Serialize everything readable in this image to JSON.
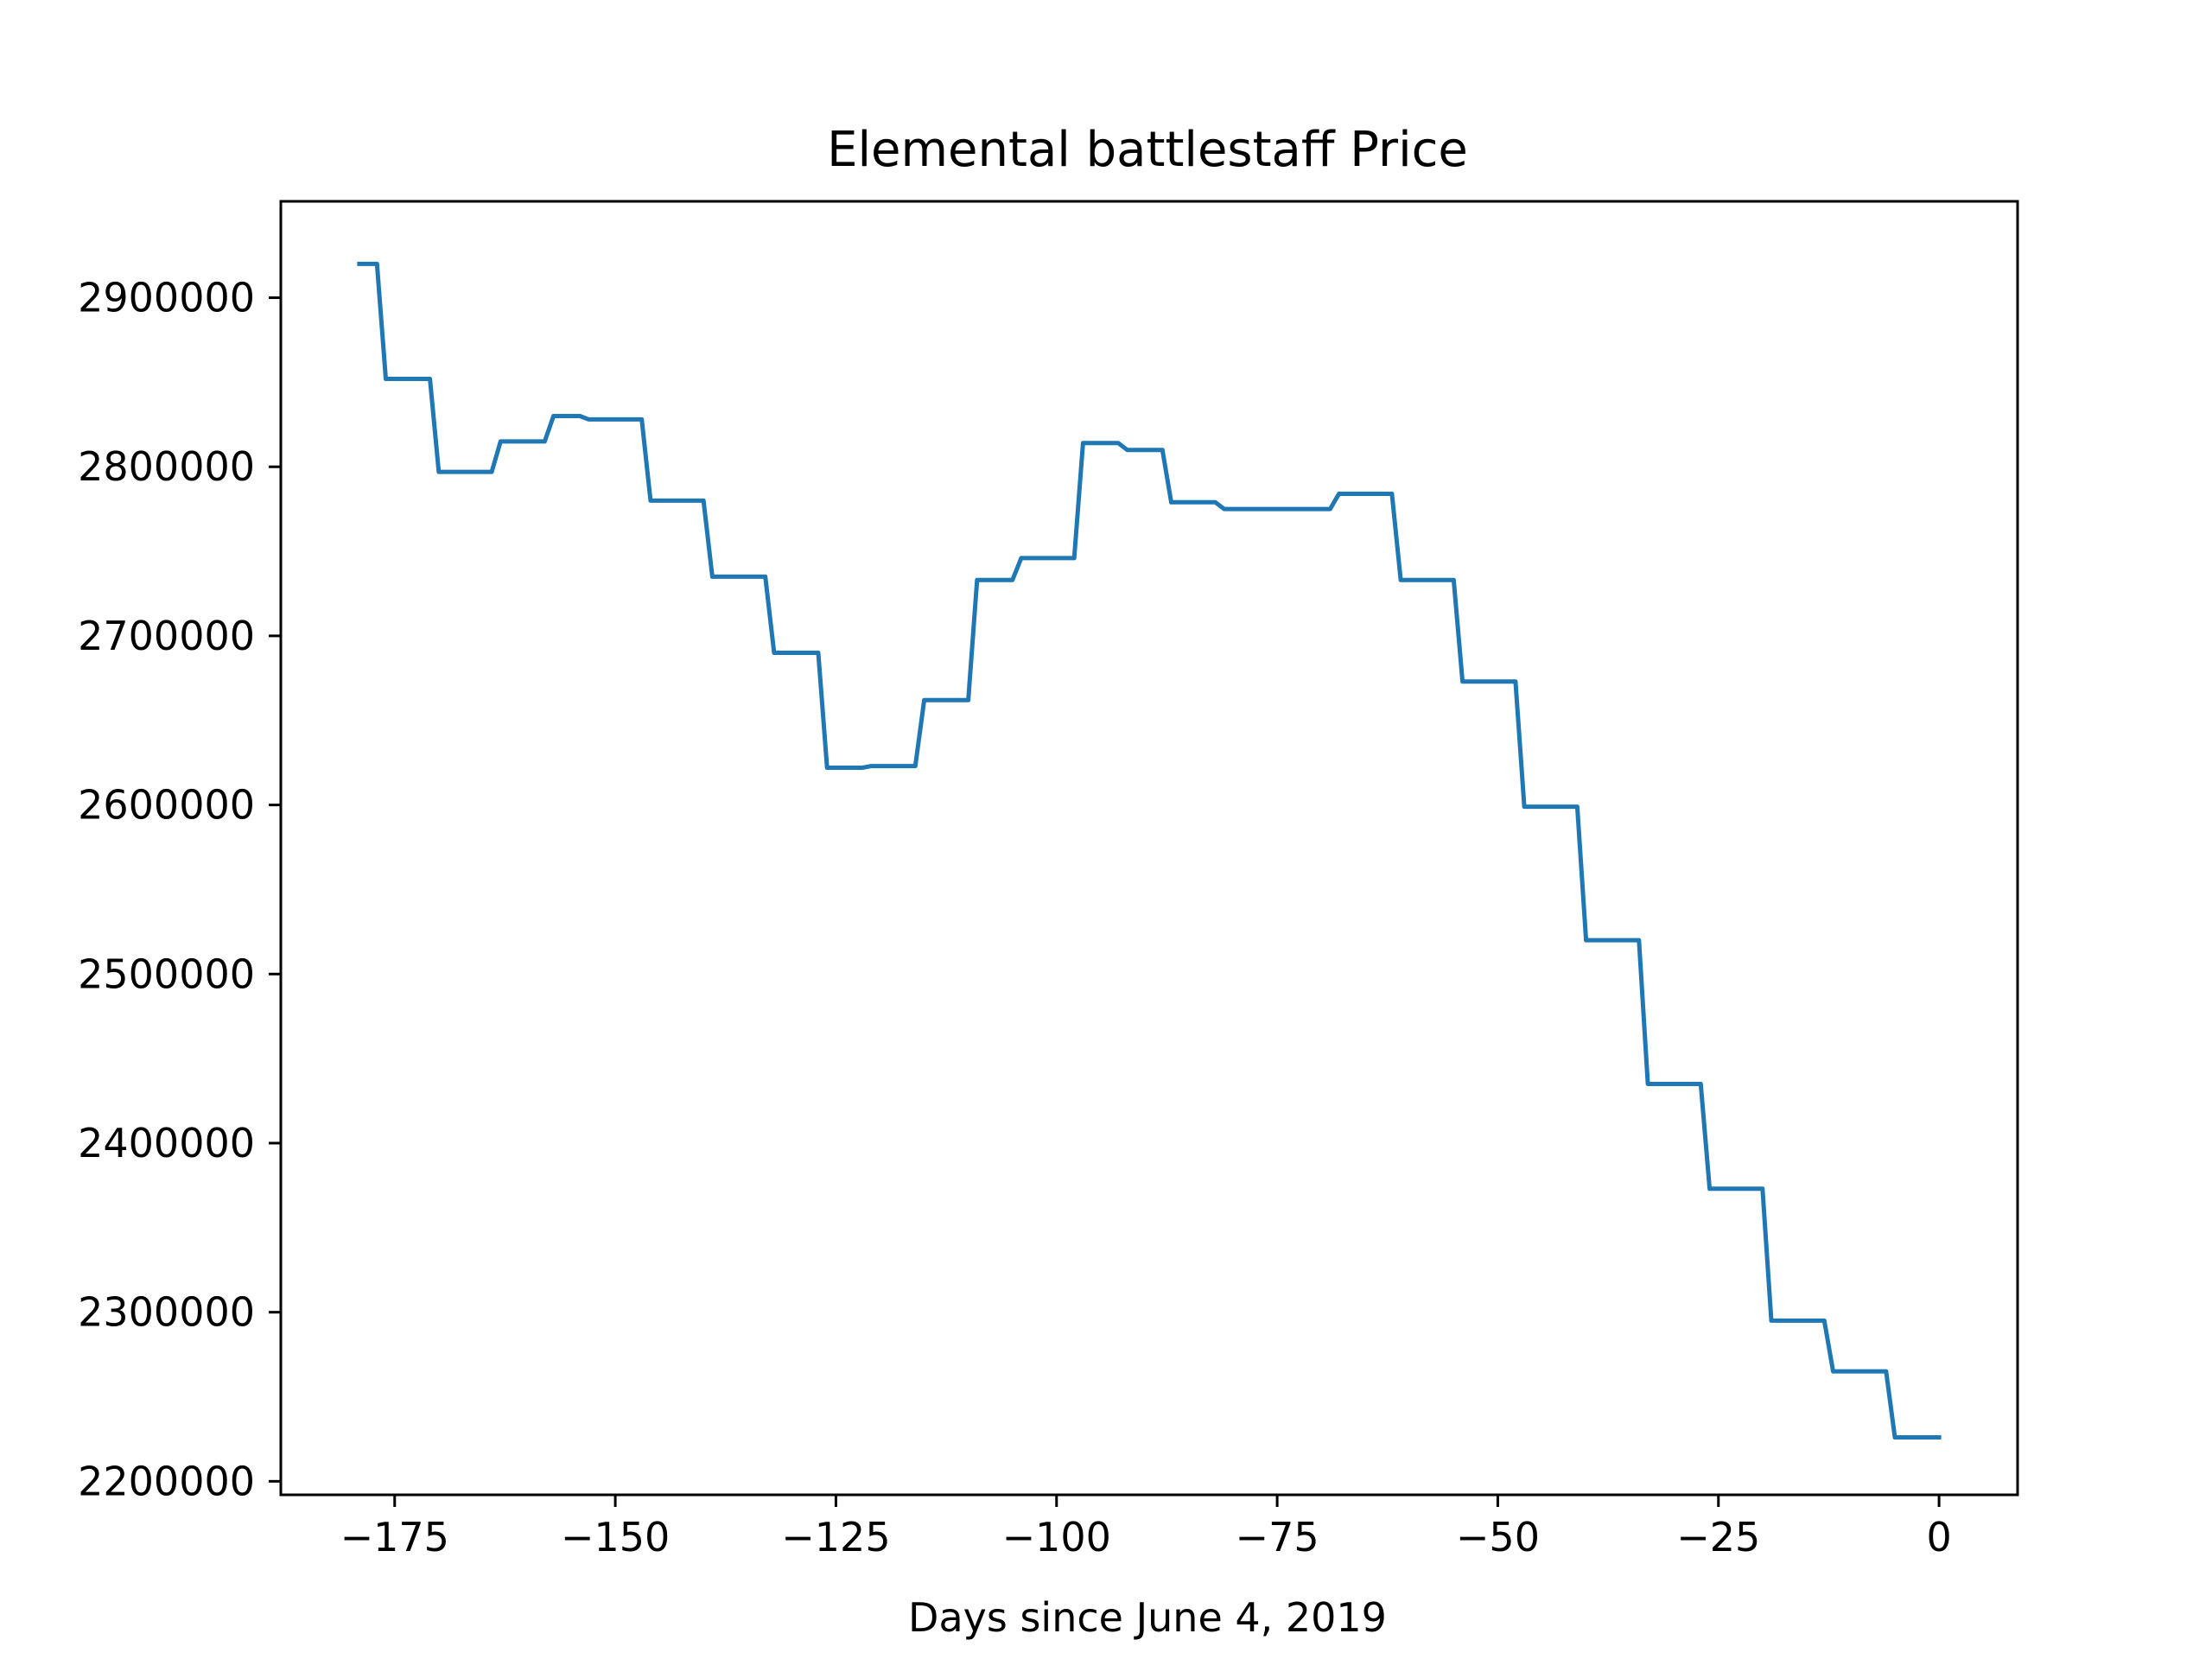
{
  "chart_data": {
    "type": "line",
    "title": "Elemental battlestaff Price",
    "xlabel": "Days since June 4, 2019",
    "ylabel": "",
    "xlim": [
      -187.9,
      8.9
    ],
    "ylim": [
      2192000,
      2957000
    ],
    "xticks": [
      -175,
      -150,
      -125,
      -100,
      -75,
      -50,
      -25,
      0
    ],
    "xtick_labels": [
      "−175",
      "−150",
      "−125",
      "−100",
      "−75",
      "−50",
      "−25",
      "0"
    ],
    "yticks": [
      2200000,
      2300000,
      2400000,
      2500000,
      2600000,
      2700000,
      2800000,
      2900000
    ],
    "ytick_labels": [
      "2200000",
      "2300000",
      "2400000",
      "2500000",
      "2600000",
      "2700000",
      "2800000",
      "2900000"
    ],
    "grid": false,
    "series_color": "#1f77b4",
    "series": [
      {
        "x": [
          -179,
          -178,
          -177,
          -176,
          -171,
          -170,
          -164,
          -163,
          -158,
          -157,
          -155,
          -154,
          -153,
          -147,
          -146,
          -140,
          -139,
          -133,
          -132,
          -127,
          -126,
          -122,
          -121,
          -116,
          -115,
          -110,
          -109,
          -105,
          -104,
          -101,
          -100,
          -98,
          -97,
          -93,
          -92,
          -88,
          -87,
          -82,
          -81,
          -75,
          -70,
          -69,
          -68,
          -62,
          -61,
          -55,
          -54,
          -48,
          -47,
          -41,
          -40,
          -34,
          -33,
          -27,
          -26,
          -20,
          -19,
          -13,
          -12,
          -6,
          -5,
          -2,
          -1,
          0
        ],
        "y": [
          2920000,
          2920000,
          2920000,
          2852000,
          2852000,
          2797000,
          2797000,
          2815000,
          2815000,
          2830000,
          2830000,
          2830000,
          2828000,
          2828000,
          2780000,
          2780000,
          2735000,
          2735000,
          2690000,
          2690000,
          2622000,
          2622000,
          2623000,
          2623000,
          2662000,
          2662000,
          2733000,
          2733000,
          2746000,
          2746000,
          2746000,
          2746000,
          2814000,
          2814000,
          2810000,
          2810000,
          2779000,
          2779000,
          2775000,
          2775000,
          2775000,
          2775000,
          2784000,
          2784000,
          2733000,
          2733000,
          2673000,
          2673000,
          2599000,
          2599000,
          2520000,
          2520000,
          2435000,
          2435000,
          2373000,
          2373000,
          2295000,
          2295000,
          2265000,
          2265000,
          2226000,
          2226000,
          2226000,
          2226000
        ]
      }
    ]
  }
}
